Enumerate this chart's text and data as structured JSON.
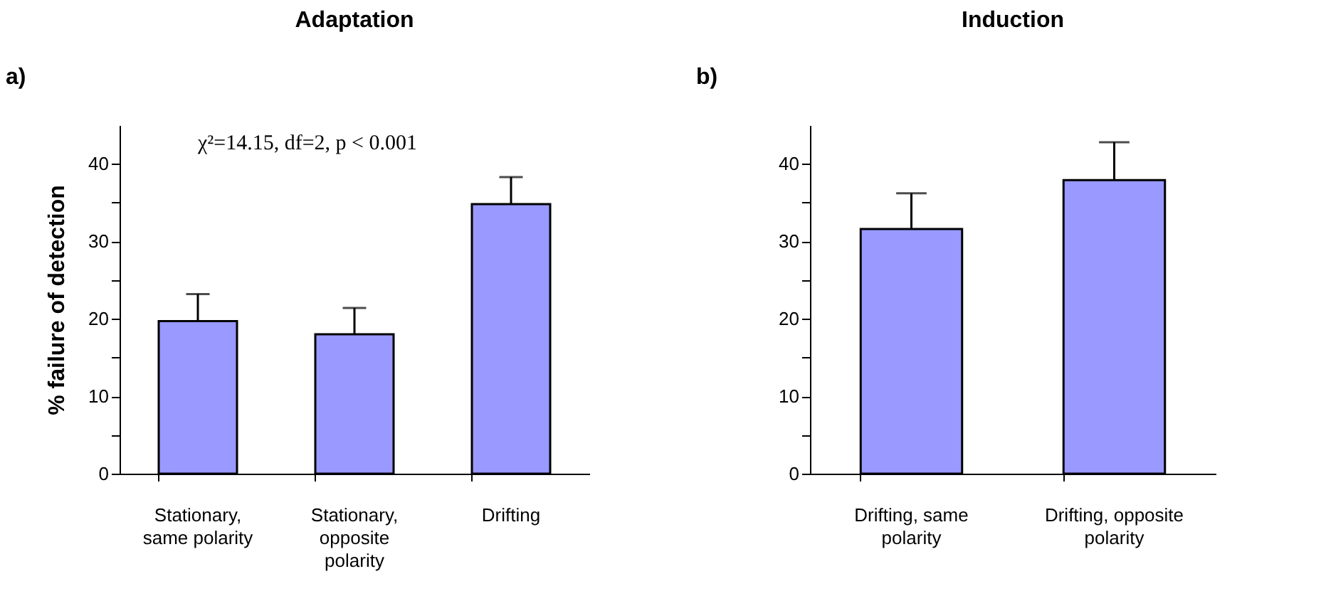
{
  "chart_data": [
    {
      "type": "bar",
      "title": "Adaptation",
      "ylabel": "% failure of detection",
      "annotations": [
        "a)",
        "χ²=14.15, df=2, p < 0.001"
      ],
      "categories": [
        "Stationary, same polarity",
        "Stationary, opposite polarity",
        "Drifting"
      ],
      "values": [
        19.7,
        18.0,
        34.8
      ],
      "errors": [
        3.5,
        3.4,
        3.5
      ],
      "color": "#9999ff",
      "ylim": [
        0,
        45
      ],
      "yticks": [
        0,
        {
          "value": 5,
          "label": null
        },
        10,
        {
          "value": 15,
          "label": null
        },
        20,
        {
          "value": 25,
          "label": null
        },
        30,
        {
          "value": 35,
          "label": null
        },
        40
      ],
      "grid": false
    },
    {
      "type": "bar",
      "title": "Induction",
      "annotations": [
        "b)"
      ],
      "categories": [
        "Drifting, same polarity",
        "Drifting, opposite polarity"
      ],
      "values": [
        31.6,
        37.9
      ],
      "errors": [
        4.6,
        4.9
      ],
      "color": "#9999ff",
      "ylim": [
        0,
        45
      ],
      "yticks": [
        0,
        {
          "value": 5,
          "label": null
        },
        10,
        {
          "value": 15,
          "label": null
        },
        20,
        {
          "value": 25,
          "label": null
        },
        30,
        {
          "value": 35,
          "label": null
        },
        40
      ],
      "grid": false
    }
  ]
}
